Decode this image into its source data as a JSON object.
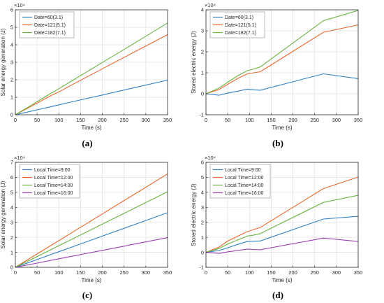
{
  "captions": [
    "(a)",
    "(b)",
    "(c)",
    "(d)"
  ],
  "chart_data": [
    {
      "type": "line",
      "ylabel": "Solar energy generation (J)",
      "xlabel": "Time (s)",
      "exponent": "×10⁴",
      "xlim": [
        0,
        350
      ],
      "ylim": [
        0,
        6
      ],
      "xticks": [
        0,
        50,
        100,
        150,
        200,
        250,
        300,
        350
      ],
      "yticks": [
        0,
        1,
        2,
        3,
        4,
        5,
        6
      ],
      "grid": true,
      "legend": "top-left",
      "series": [
        {
          "name": "Date=60(3.1)",
          "color": "#2f80c8",
          "x": [
            0,
            30,
            60,
            80,
            100,
            130,
            200,
            270,
            350
          ],
          "y": [
            0,
            0.17,
            0.34,
            0.45,
            0.57,
            0.74,
            1.13,
            1.53,
            1.98
          ]
        },
        {
          "name": "Date=121(5.1)",
          "color": "#e8692e",
          "x": [
            0,
            30,
            60,
            80,
            100,
            130,
            200,
            270,
            350
          ],
          "y": [
            0,
            0.4,
            0.8,
            1.07,
            1.31,
            1.71,
            2.63,
            3.54,
            4.58
          ]
        },
        {
          "name": "Date=182(7.1)",
          "color": "#6ab23e",
          "x": [
            0,
            30,
            60,
            80,
            100,
            130,
            200,
            270,
            350
          ],
          "y": [
            0,
            0.45,
            0.9,
            1.2,
            1.49,
            1.94,
            2.99,
            4.03,
            5.25
          ]
        }
      ]
    },
    {
      "type": "line",
      "ylabel": "Stored electric energy (J)",
      "xlabel": "Time (s)",
      "exponent": "×10⁴",
      "xlim": [
        0,
        350
      ],
      "ylim": [
        -1,
        4
      ],
      "xticks": [
        0,
        50,
        100,
        150,
        200,
        250,
        300,
        350
      ],
      "yticks": [
        -1,
        0,
        1,
        2,
        3,
        4
      ],
      "grid": true,
      "legend": "top-left",
      "series": [
        {
          "name": "Date=60(3.1)",
          "color": "#2f80c8",
          "x": [
            0,
            30,
            50,
            75,
            95,
            110,
            125,
            270,
            350
          ],
          "y": [
            0,
            -0.07,
            0.03,
            0.13,
            0.22,
            0.19,
            0.17,
            0.95,
            0.72
          ]
        },
        {
          "name": "Date=121(5.1)",
          "color": "#e8692e",
          "x": [
            0,
            30,
            50,
            75,
            95,
            110,
            125,
            270,
            350
          ],
          "y": [
            0,
            0.2,
            0.45,
            0.75,
            0.95,
            1.0,
            1.05,
            2.93,
            3.28
          ]
        },
        {
          "name": "Date=182(7.1)",
          "color": "#6ab23e",
          "x": [
            0,
            30,
            50,
            75,
            95,
            110,
            125,
            270,
            350
          ],
          "y": [
            0,
            0.27,
            0.55,
            0.88,
            1.1,
            1.18,
            1.28,
            3.48,
            3.97
          ]
        }
      ]
    },
    {
      "type": "line",
      "ylabel": "Solar energy generation (J)",
      "xlabel": "Time (s)",
      "exponent": "×10⁴",
      "xlim": [
        0,
        350
      ],
      "ylim": [
        0,
        7
      ],
      "xticks": [
        0,
        50,
        100,
        150,
        200,
        250,
        300,
        350
      ],
      "yticks": [
        0,
        1,
        2,
        3,
        4,
        5,
        6,
        7
      ],
      "grid": true,
      "legend": "top-left",
      "series": [
        {
          "name": "Local Time=9:00",
          "color": "#2f80c8",
          "x": [
            0,
            50,
            100,
            150,
            200,
            250,
            300,
            350
          ],
          "y": [
            0,
            0.52,
            1.04,
            1.56,
            2.08,
            2.6,
            3.12,
            3.64
          ]
        },
        {
          "name": "Local Time=12:00",
          "color": "#e8692e",
          "x": [
            0,
            50,
            100,
            150,
            200,
            250,
            300,
            350
          ],
          "y": [
            0,
            0.89,
            1.78,
            2.67,
            3.56,
            4.45,
            5.34,
            6.23
          ]
        },
        {
          "name": "Local Time=14:00",
          "color": "#6ab23e",
          "x": [
            0,
            50,
            100,
            150,
            200,
            250,
            300,
            350
          ],
          "y": [
            0,
            0.72,
            1.44,
            2.16,
            2.88,
            3.6,
            4.32,
            5.04
          ]
        },
        {
          "name": "Local Time=16:00",
          "color": "#9b3fb5",
          "x": [
            0,
            50,
            100,
            150,
            200,
            250,
            300,
            350
          ],
          "y": [
            0,
            0.28,
            0.57,
            0.85,
            1.13,
            1.41,
            1.7,
            1.98
          ]
        }
      ]
    },
    {
      "type": "line",
      "ylabel": "Stored electric energy (J)",
      "xlabel": "Time (s)",
      "exponent": "×10⁴",
      "xlim": [
        0,
        350
      ],
      "ylim": [
        -1,
        6
      ],
      "xticks": [
        0,
        50,
        100,
        150,
        200,
        250,
        300,
        350
      ],
      "yticks": [
        -1,
        0,
        1,
        2,
        3,
        4,
        5,
        6
      ],
      "grid": true,
      "legend": "top-left",
      "series": [
        {
          "name": "Local Time=9:00",
          "color": "#2f80c8",
          "x": [
            0,
            30,
            50,
            75,
            95,
            110,
            125,
            270,
            350
          ],
          "y": [
            0,
            0.12,
            0.3,
            0.55,
            0.72,
            0.74,
            0.76,
            2.22,
            2.4
          ]
        },
        {
          "name": "Local Time=12:00",
          "color": "#e8692e",
          "x": [
            0,
            30,
            50,
            75,
            95,
            110,
            125,
            270,
            350
          ],
          "y": [
            0,
            0.35,
            0.75,
            1.1,
            1.38,
            1.52,
            1.66,
            4.25,
            5.02
          ]
        },
        {
          "name": "Local Time=14:00",
          "color": "#6ab23e",
          "x": [
            0,
            30,
            50,
            75,
            95,
            110,
            125,
            270,
            350
          ],
          "y": [
            0,
            0.25,
            0.55,
            0.85,
            1.08,
            1.15,
            1.25,
            3.33,
            3.8
          ]
        },
        {
          "name": "Local Time=16:00",
          "color": "#9b3fb5",
          "x": [
            0,
            30,
            50,
            75,
            95,
            110,
            125,
            270,
            350
          ],
          "y": [
            0,
            -0.07,
            0.03,
            0.13,
            0.22,
            0.19,
            0.17,
            0.95,
            0.72
          ]
        }
      ]
    }
  ]
}
